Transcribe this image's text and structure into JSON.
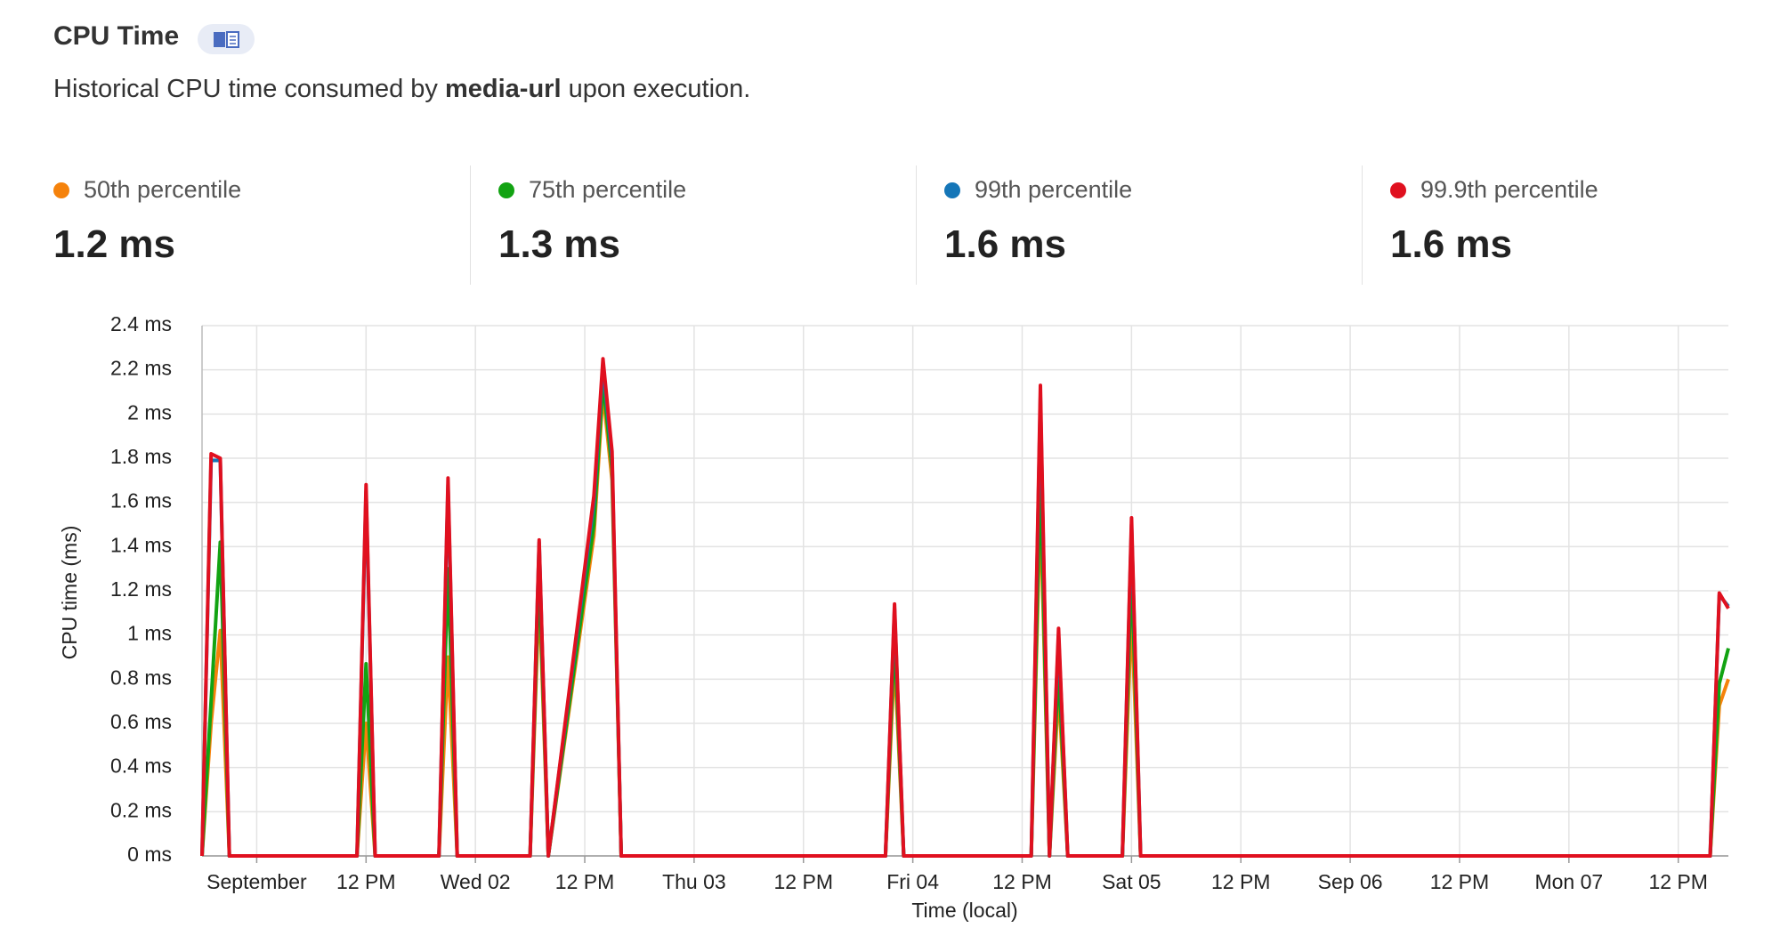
{
  "header": {
    "title": "CPU Time",
    "description": [
      "Historical CPU time consumed by ",
      "media-url",
      " upon execution."
    ]
  },
  "stats": {
    "values": [
      "1.2 ms",
      "1.3 ms",
      "1.6 ms",
      "1.6 ms"
    ]
  },
  "chart_data": {
    "type": "line",
    "x_label": "Time (local)",
    "y_label": "CPU time (ms)",
    "x": [
      -6,
      -5,
      -4,
      -3,
      11,
      12,
      13,
      20,
      21,
      22,
      30,
      31,
      32,
      37,
      38,
      39,
      40,
      69,
      70,
      71,
      85,
      86,
      87,
      88,
      89,
      95,
      96,
      97,
      159.5,
      160.5,
      161.5
    ],
    "series": [
      {
        "name": "50th percentile",
        "color": "#f5820b",
        "values": [
          0,
          0.6,
          1.02,
          0,
          0,
          0.6,
          0,
          0,
          0.9,
          0,
          0,
          1.2,
          0,
          1.45,
          2.1,
          1.7,
          0,
          0,
          0.9,
          0,
          0,
          1.6,
          0,
          0.75,
          0,
          0,
          1.1,
          0,
          0,
          0.68,
          0.8
        ]
      },
      {
        "name": "75th percentile",
        "color": "#12a312",
        "values": [
          0,
          0.7,
          1.42,
          0,
          0,
          0.87,
          0,
          0,
          1.3,
          0,
          0,
          1.3,
          0,
          1.5,
          2.15,
          1.75,
          0,
          0,
          1.0,
          0,
          0,
          1.75,
          0,
          0.85,
          0,
          0,
          1.3,
          0,
          0,
          0.78,
          0.94
        ]
      },
      {
        "name": "99th percentile",
        "color": "#1576b8",
        "values": [
          0,
          1.79,
          1.79,
          0,
          0,
          1.65,
          0,
          0,
          1.68,
          0,
          0,
          1.42,
          0,
          1.6,
          2.22,
          1.8,
          0,
          0,
          1.12,
          0,
          0,
          2.08,
          0,
          1.0,
          0,
          0,
          1.5,
          0,
          0,
          1.18,
          1.13
        ]
      },
      {
        "name": "99.9th percentile",
        "color": "#e0101f",
        "values": [
          0,
          1.82,
          1.8,
          0,
          0,
          1.68,
          0,
          0,
          1.71,
          0,
          0,
          1.43,
          0,
          1.63,
          2.25,
          1.83,
          0,
          0,
          1.14,
          0,
          0,
          2.13,
          0,
          1.03,
          0,
          0,
          1.53,
          0,
          0,
          1.19,
          1.12
        ]
      }
    ],
    "xlim": [
      -6,
      161.5
    ],
    "xticks": [
      {
        "value": 0,
        "label": "September"
      },
      {
        "value": 12,
        "label": "12 PM"
      },
      {
        "value": 24,
        "label": "Wed 02"
      },
      {
        "value": 36,
        "label": "12 PM"
      },
      {
        "value": 48,
        "label": "Thu 03"
      },
      {
        "value": 60,
        "label": "12 PM"
      },
      {
        "value": 72,
        "label": "Fri 04"
      },
      {
        "value": 84,
        "label": "12 PM"
      },
      {
        "value": 96,
        "label": "Sat 05"
      },
      {
        "value": 108,
        "label": "12 PM"
      },
      {
        "value": 120,
        "label": "Sep 06"
      },
      {
        "value": 132,
        "label": "12 PM"
      },
      {
        "value": 144,
        "label": "Mon 07"
      },
      {
        "value": 156,
        "label": "12 PM"
      }
    ],
    "ylim": [
      0,
      2.4
    ],
    "yticks": [
      {
        "value": 0,
        "label": "0 ms"
      },
      {
        "value": 0.2,
        "label": "0.2 ms"
      },
      {
        "value": 0.4,
        "label": "0.4 ms"
      },
      {
        "value": 0.6,
        "label": "0.6 ms"
      },
      {
        "value": 0.8,
        "label": "0.8 ms"
      },
      {
        "value": 1,
        "label": "1 ms"
      },
      {
        "value": 1.2,
        "label": "1.2 ms"
      },
      {
        "value": 1.4,
        "label": "1.4 ms"
      },
      {
        "value": 1.6,
        "label": "1.6 ms"
      },
      {
        "value": 1.8,
        "label": "1.8 ms"
      },
      {
        "value": 2,
        "label": "2 ms"
      },
      {
        "value": 2.2,
        "label": "2.2 ms"
      },
      {
        "value": 2.4,
        "label": "2.4 ms"
      }
    ],
    "grid": true
  }
}
